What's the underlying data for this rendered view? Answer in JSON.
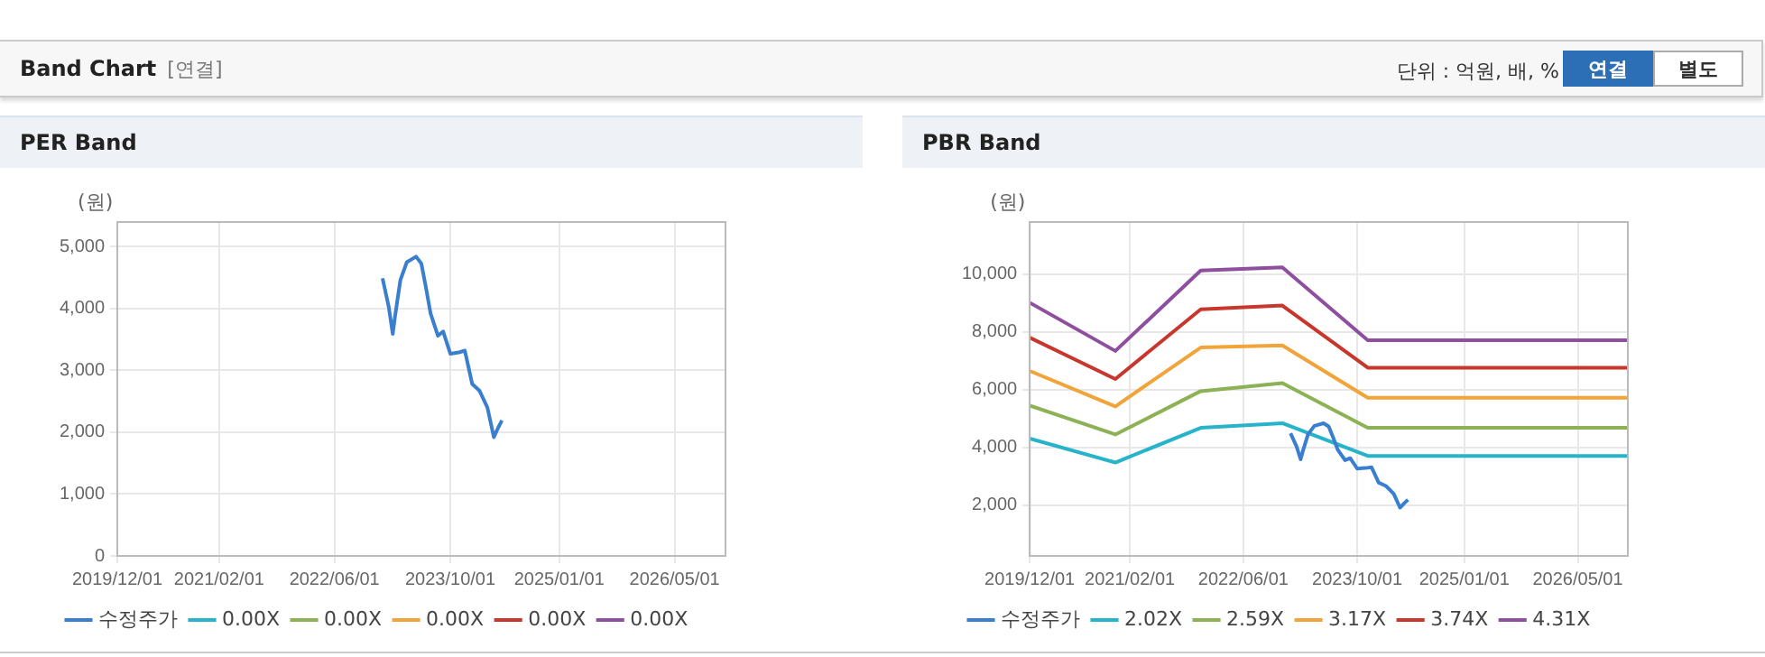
{
  "chart_data": [
    {
      "type": "other",
      "title": "Band Chart",
      "annotations": [
        "[연결]",
        "단위 : 억원, 배, %",
        "연결",
        "별도"
      ]
    },
    {
      "type": "line",
      "title": "PER Band",
      "ylabel": "(원)",
      "xlim": [
        "2019-12-01",
        "2026-12-01"
      ],
      "xticks": [
        {
          "value": "2019-12-01",
          "label": "2019/12/01"
        },
        {
          "value": "2021-02-01",
          "label": "2021/02/01"
        },
        {
          "value": "2022-06-01",
          "label": "2022/06/01"
        },
        {
          "value": "2023-10-01",
          "label": "2023/10/01"
        },
        {
          "value": "2025-01-01",
          "label": "2025/01/01"
        },
        {
          "value": "2026-05-01",
          "label": "2026/05/01"
        }
      ],
      "ylim": [
        0,
        5400
      ],
      "yticks": [
        0,
        {
          "value": 1000,
          "label": "1,000"
        },
        {
          "value": 2000,
          "label": "2,000"
        },
        {
          "value": 3000,
          "label": "3,000"
        },
        {
          "value": 4000,
          "label": "4,000"
        },
        {
          "value": 5000,
          "label": "5,000"
        }
      ],
      "grid": true,
      "legend": "bottom",
      "marker": "none",
      "series": [
        {
          "name": "수정주가",
          "color": "#3a7fcf",
          "x": [
            "2022-12-20",
            "2023-01-15",
            "2023-02-01",
            "2023-02-10",
            "2023-03-05",
            "2023-04-01",
            "2023-05-10",
            "2023-06-01",
            "2023-06-20",
            "2023-07-10",
            "2023-08-10",
            "2023-09-01",
            "2023-10-01",
            "2023-11-05",
            "2023-12-01",
            "2024-01-01",
            "2024-02-01",
            "2024-03-05",
            "2024-04-01",
            "2024-04-20",
            "2024-05-05"
          ],
          "values": [
            4490,
            4030,
            3590,
            3860,
            4460,
            4750,
            4840,
            4730,
            4350,
            3920,
            3560,
            3630,
            3270,
            3290,
            3320,
            2780,
            2670,
            2400,
            1920,
            2080,
            2190
          ]
        },
        {
          "name": "0.00X",
          "color": "#27b3c9"
        },
        {
          "name": "0.00X",
          "color": "#8db255"
        },
        {
          "name": "0.00X",
          "color": "#f0a43a"
        },
        {
          "name": "0.00X",
          "color": "#c8372d"
        },
        {
          "name": "0.00X",
          "color": "#8e4f9e"
        }
      ]
    },
    {
      "type": "line",
      "title": "PBR Band",
      "ylabel": "(원)",
      "xlim": [
        "2019-12-01",
        "2026-12-01"
      ],
      "xticks": [
        {
          "value": "2019-12-01",
          "label": "2019/12/01"
        },
        {
          "value": "2021-02-01",
          "label": "2021/02/01"
        },
        {
          "value": "2022-06-01",
          "label": "2022/06/01"
        },
        {
          "value": "2023-10-01",
          "label": "2023/10/01"
        },
        {
          "value": "2025-01-01",
          "label": "2025/01/01"
        },
        {
          "value": "2026-05-01",
          "label": "2026/05/01"
        }
      ],
      "ylim": [
        250,
        11800
      ],
      "yticks": [
        {
          "value": 2000,
          "label": "2,000"
        },
        {
          "value": 4000,
          "label": "4,000"
        },
        {
          "value": 6000,
          "label": "6,000"
        },
        {
          "value": 8000,
          "label": "8,000"
        },
        {
          "value": 10000,
          "label": "10,000"
        }
      ],
      "grid": true,
      "legend": "bottom",
      "marker": "none",
      "series": [
        {
          "name": "수정주가",
          "color": "#3a7fcf",
          "x": [
            "2022-12-20",
            "2023-01-15",
            "2023-02-01",
            "2023-02-10",
            "2023-03-05",
            "2023-04-01",
            "2023-05-10",
            "2023-06-01",
            "2023-06-20",
            "2023-07-10",
            "2023-08-10",
            "2023-09-01",
            "2023-10-01",
            "2023-11-05",
            "2023-12-01",
            "2024-01-01",
            "2024-02-01",
            "2024-03-05",
            "2024-04-01",
            "2024-04-20",
            "2024-05-05"
          ],
          "values": [
            4490,
            4030,
            3590,
            3860,
            4460,
            4750,
            4840,
            4730,
            4350,
            3920,
            3560,
            3630,
            3270,
            3290,
            3320,
            2780,
            2670,
            2400,
            1920,
            2080,
            2190
          ]
        },
        {
          "name": "2.02X",
          "color": "#27b3c9",
          "x": [
            "2019-12-01",
            "2020-12-01",
            "2021-12-01",
            "2022-11-15",
            "2023-11-15",
            "2026-12-01"
          ],
          "values": [
            4310,
            3480,
            4680,
            4840,
            3710,
            3710
          ]
        },
        {
          "name": "2.59X",
          "color": "#8db255",
          "x": [
            "2019-12-01",
            "2020-12-01",
            "2021-12-01",
            "2022-11-15",
            "2023-11-15",
            "2026-12-01"
          ],
          "values": [
            5450,
            4450,
            5950,
            6230,
            4680,
            4680
          ]
        },
        {
          "name": "3.17X",
          "color": "#f0a43a",
          "x": [
            "2019-12-01",
            "2020-12-01",
            "2021-12-01",
            "2022-11-15",
            "2023-11-15",
            "2026-12-01"
          ],
          "values": [
            6650,
            5420,
            7460,
            7530,
            5720,
            5720
          ]
        },
        {
          "name": "3.74X",
          "color": "#c8372d",
          "x": [
            "2019-12-01",
            "2020-12-01",
            "2021-12-01",
            "2022-11-15",
            "2023-11-15",
            "2026-12-01"
          ],
          "values": [
            7800,
            6370,
            8780,
            8910,
            6760,
            6760
          ]
        },
        {
          "name": "4.31X",
          "color": "#8e4f9e",
          "x": [
            "2019-12-01",
            "2020-12-01",
            "2021-12-01",
            "2022-11-15",
            "2023-11-15",
            "2026-12-01"
          ],
          "values": [
            9010,
            7340,
            10120,
            10230,
            7710,
            7710
          ]
        }
      ]
    }
  ]
}
